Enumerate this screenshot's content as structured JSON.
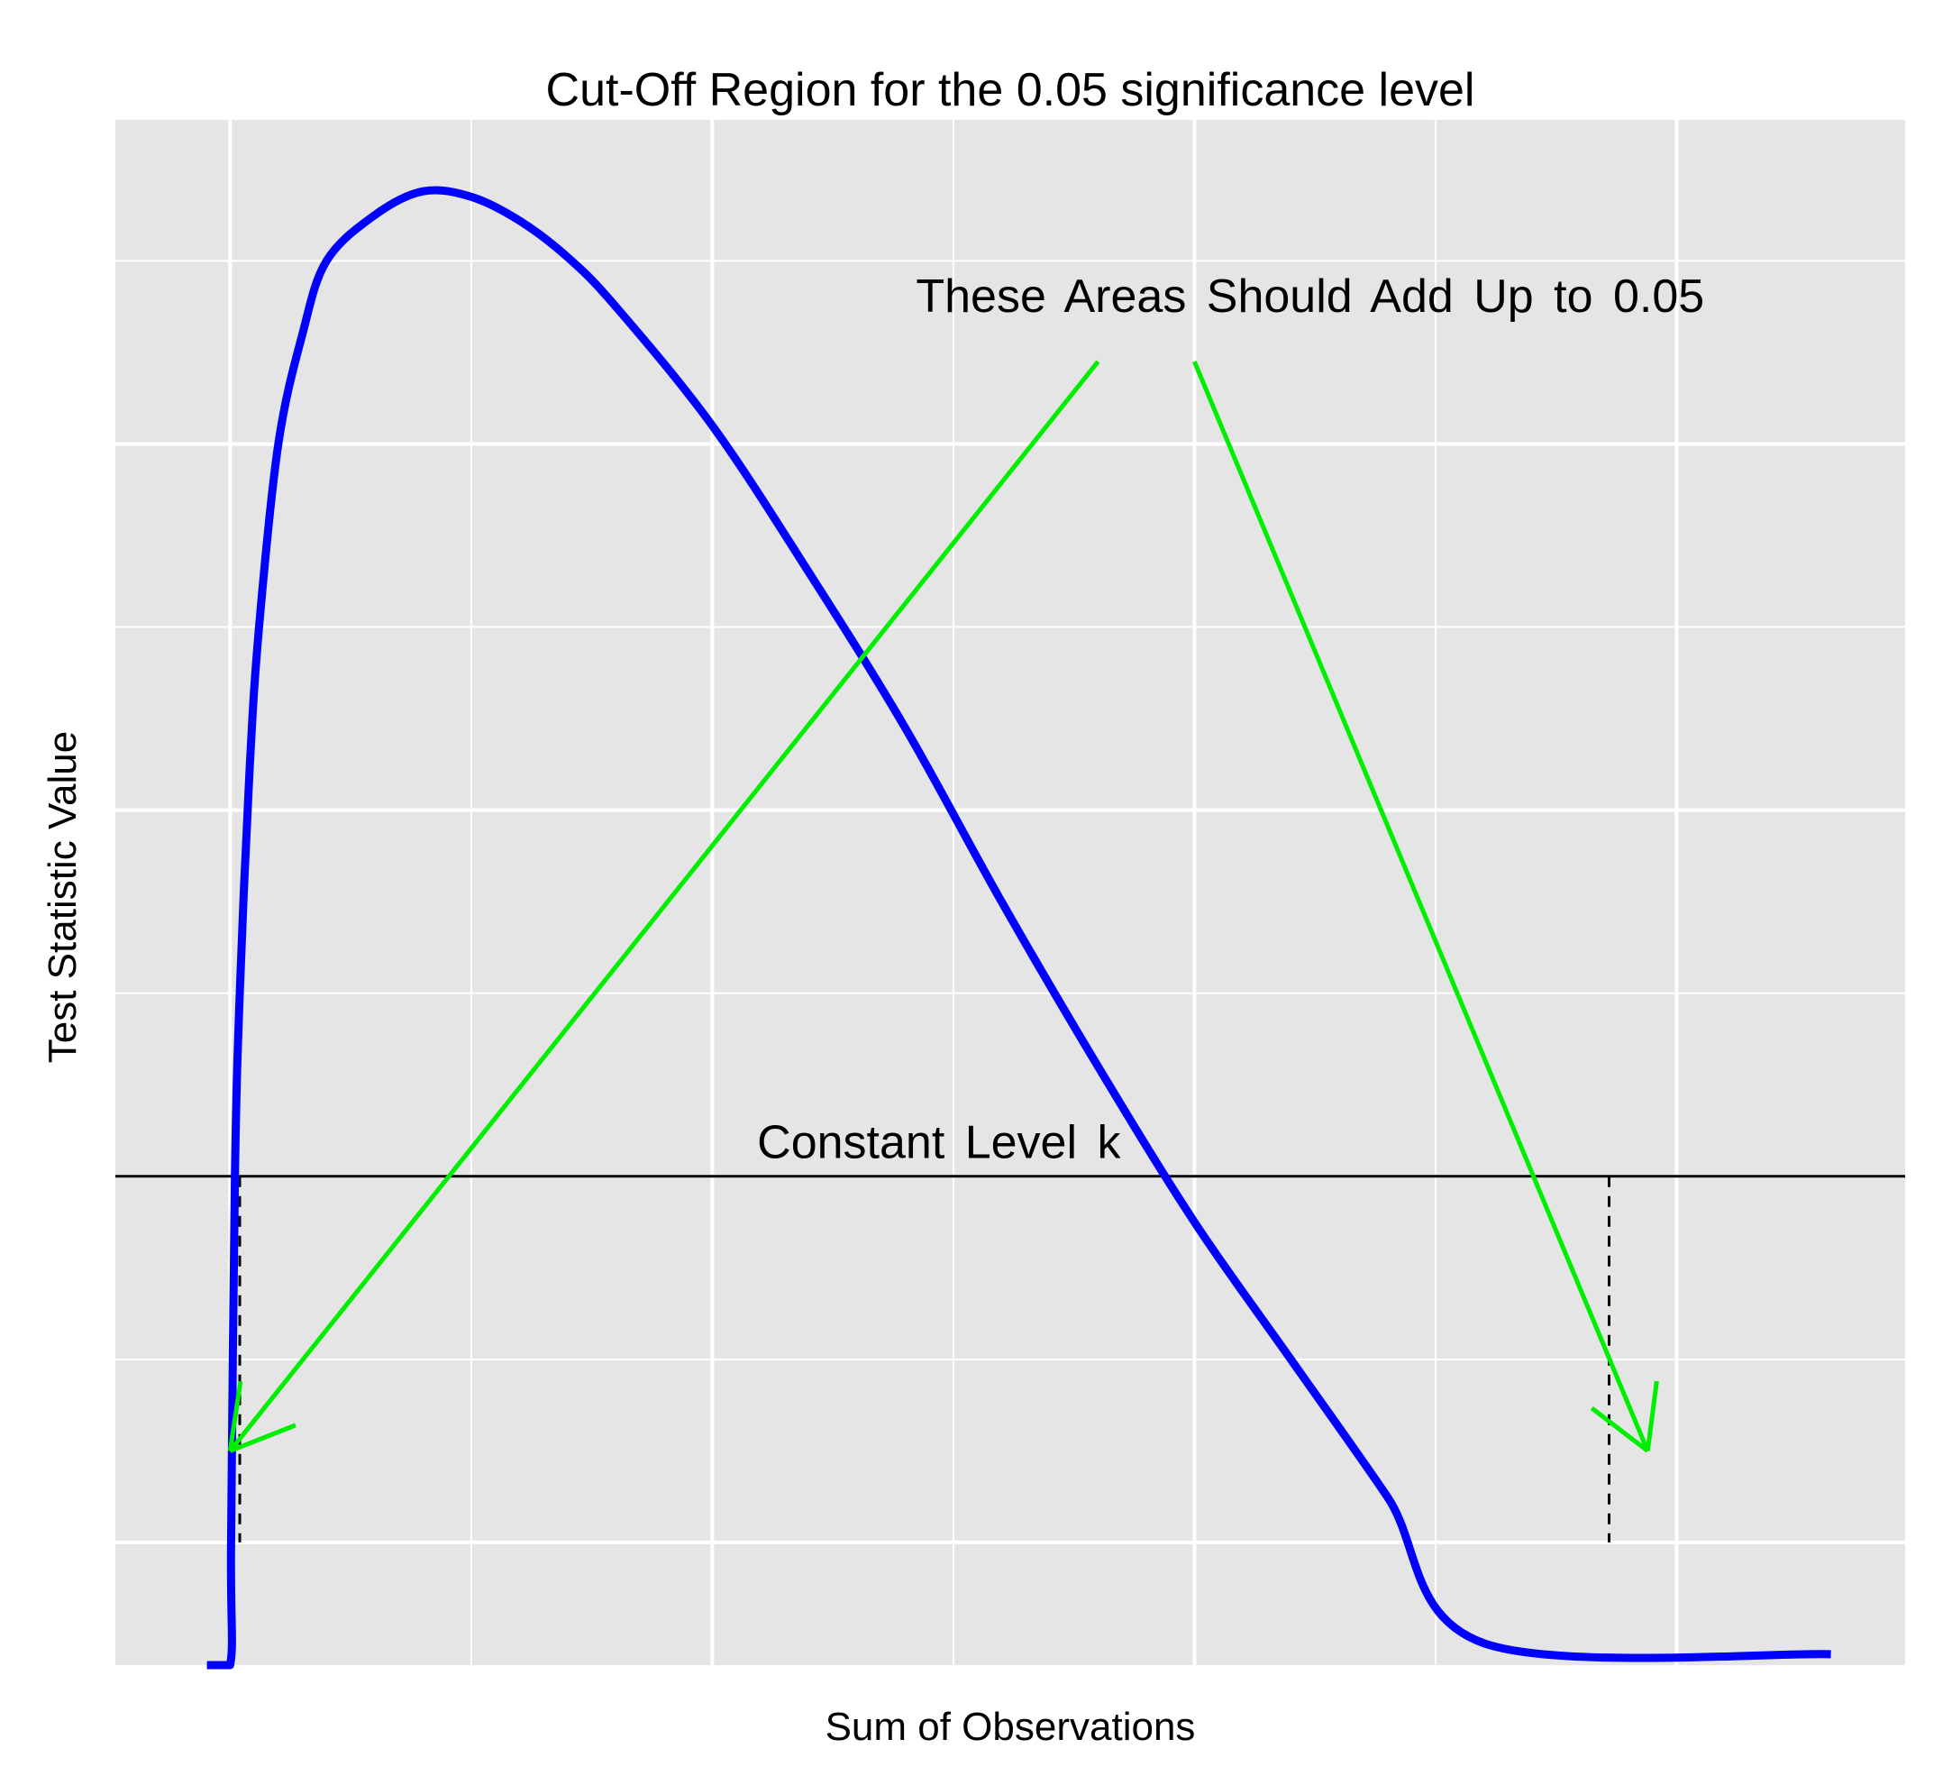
{
  "chart_data": {
    "type": "line",
    "title": "Cut-Off Region for the 0.05 significance level",
    "xlabel": "Sum of Observations",
    "ylabel": "Test Statistic Value",
    "xlim": [
      -1.19,
      17.37
    ],
    "ylim": [
      -0.67,
      7.77
    ],
    "x_tick_labels": [],
    "y_tick_labels": [],
    "grid": true,
    "legend": "none",
    "series": [
      {
        "color": "#0000ff",
        "points": [
          [
            -0.24,
            -0.67
          ],
          [
            -0.0,
            -0.67
          ],
          [
            0.01,
            0.0
          ],
          [
            0.05,
            2.0
          ],
          [
            0.1,
            3.0
          ],
          [
            0.2,
            4.2
          ],
          [
            0.3,
            5.0
          ],
          [
            0.5,
            6.0
          ],
          [
            0.75,
            6.6
          ],
          [
            1.0,
            7.0
          ],
          [
            1.5,
            7.25
          ],
          [
            2.0,
            7.38
          ],
          [
            2.5,
            7.35
          ],
          [
            3.0,
            7.22
          ],
          [
            3.5,
            7.02
          ],
          [
            4.0,
            6.75
          ],
          [
            5.0,
            6.1
          ],
          [
            6.0,
            5.3
          ],
          [
            7.0,
            4.45
          ],
          [
            8.0,
            3.5
          ],
          [
            9.0,
            2.6
          ],
          [
            10.0,
            1.75
          ],
          [
            11.0,
            1.0
          ],
          [
            12.0,
            0.25
          ],
          [
            13.0,
            -0.55
          ],
          [
            16.6,
            -0.61
          ]
        ]
      }
    ],
    "reference_lines": [
      {
        "orientation": "horizontal",
        "y": 2.0,
        "style": "solid",
        "color": "#000000"
      },
      {
        "orientation": "vertical",
        "x": 0.1,
        "y_from": 0.0,
        "y_to": 2.0,
        "style": "dashed",
        "color": "#000000"
      },
      {
        "orientation": "vertical",
        "x": 14.3,
        "y_from": 0.0,
        "y_to": 2.0,
        "style": "dashed",
        "color": "#000000"
      }
    ],
    "arrows": [
      {
        "from": [
          9.0,
          6.45
        ],
        "to": [
          0.0,
          0.5
        ],
        "color": "#00ee00"
      },
      {
        "from": [
          10.0,
          6.45
        ],
        "to": [
          14.7,
          0.5
        ],
        "color": "#00ee00"
      }
    ],
    "annotations": [
      {
        "text": "These  Areas  Should  Add  Up  to 0.05",
        "x": 11.2,
        "y": 6.72
      },
      {
        "text": "Constant  Level  k",
        "x": 7.35,
        "y": 2.1
      }
    ],
    "colors": {
      "panel_background": "#e5e5e5",
      "grid": "#ffffff",
      "curve": "#0000ff",
      "arrow": "#00ee00",
      "reference": "#000000"
    }
  }
}
